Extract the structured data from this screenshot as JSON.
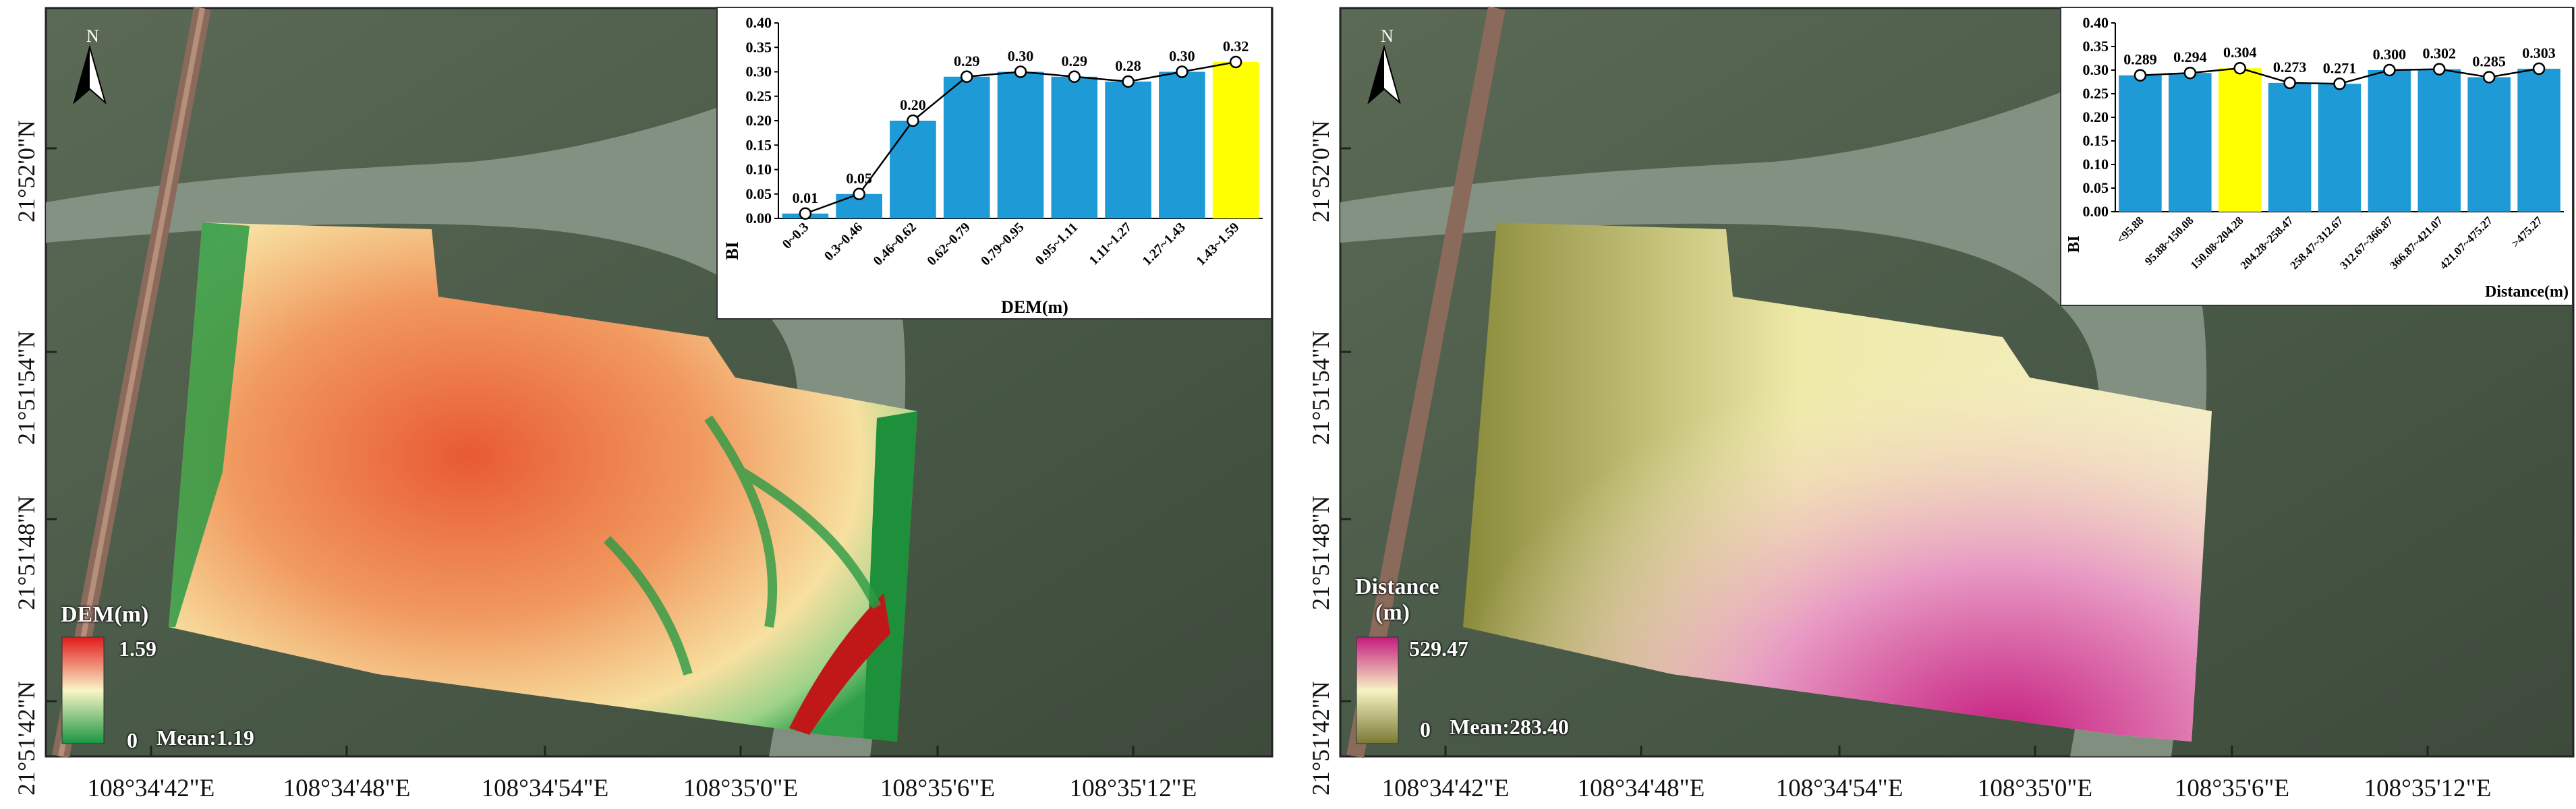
{
  "panels": [
    {
      "id": "dem",
      "legend": {
        "title": "DEM(m)",
        "max_label": "1.59",
        "min_label": "0",
        "mean_label": "Mean:1.19",
        "colors": [
          "#e31a1c",
          "#f9f5c7",
          "#1a9641"
        ]
      },
      "lat_labels": [
        "21°52'0\"N",
        "21°51'54\"N",
        "21°51'48\"N",
        "21°51'42\"N"
      ],
      "lon_labels": [
        "108°34'42\"E",
        "108°34'48\"E",
        "108°34'54\"E",
        "108°35'0\"E",
        "108°35'6\"E",
        "108°35'12\"E"
      ],
      "north_label": "N",
      "chart_data": {
        "type": "bar",
        "ylabel": "BI",
        "xlabel": "DEM(m)",
        "ylim": [
          0,
          0.4
        ],
        "yticks": [
          "0.00",
          "0.05",
          "0.10",
          "0.15",
          "0.20",
          "0.25",
          "0.30",
          "0.35",
          "0.40"
        ],
        "categories": [
          "0~0.3",
          "0.3~0.46",
          "0.46~0.62",
          "0.62~0.79",
          "0.79~0.95",
          "0.95~1.11",
          "1.11~1.27",
          "1.27~1.43",
          "1.43~1.59"
        ],
        "values": [
          0.01,
          0.05,
          0.2,
          0.29,
          0.3,
          0.29,
          0.28,
          0.3,
          0.32
        ],
        "value_labels": [
          "0.01",
          "0.05",
          "0.20",
          "0.29",
          "0.30",
          "0.29",
          "0.28",
          "0.30",
          "0.32"
        ],
        "highlight_index": 8,
        "bar_color": "#1e9bd7",
        "highlight_color": "#ffff00",
        "line": true
      }
    },
    {
      "id": "distance",
      "legend": {
        "title_line1": "Distance",
        "title_line2": "(m)",
        "max_label": "529.47",
        "min_label": "0",
        "mean_label": "Mean:283.40",
        "colors": [
          "#c51b7d",
          "#f7f3c4",
          "#7a7a33"
        ]
      },
      "lat_labels": [
        "21°52'0\"N",
        "21°51'54\"N",
        "21°51'48\"N",
        "21°51'42\"N"
      ],
      "lon_labels": [
        "108°34'42\"E",
        "108°34'48\"E",
        "108°34'54\"E",
        "108°35'0\"E",
        "108°35'6\"E",
        "108°35'12\"E"
      ],
      "north_label": "N",
      "chart_data": {
        "type": "bar",
        "ylabel": "BI",
        "xlabel": "Distance(m)",
        "ylim": [
          0,
          0.4
        ],
        "yticks": [
          "0.00",
          "0.05",
          "0.10",
          "0.15",
          "0.20",
          "0.25",
          "0.30",
          "0.35",
          "0.40"
        ],
        "categories": [
          "<95.88",
          "95.88~150.08",
          "150.08~204.28",
          "204.28~258.47",
          "258.47~312.67",
          "312.67~366.87",
          "366.87~421.07",
          "421.07~475.27",
          ">475.27"
        ],
        "values": [
          0.289,
          0.294,
          0.304,
          0.273,
          0.271,
          0.3,
          0.302,
          0.285,
          0.303
        ],
        "value_labels": [
          "0.289",
          "0.294",
          "0.304",
          "0.273",
          "0.271",
          "0.300",
          "0.302",
          "0.285",
          "0.303"
        ],
        "highlight_index": 2,
        "bar_color": "#1e9bd7",
        "highlight_color": "#ffff00",
        "line": true
      }
    }
  ]
}
